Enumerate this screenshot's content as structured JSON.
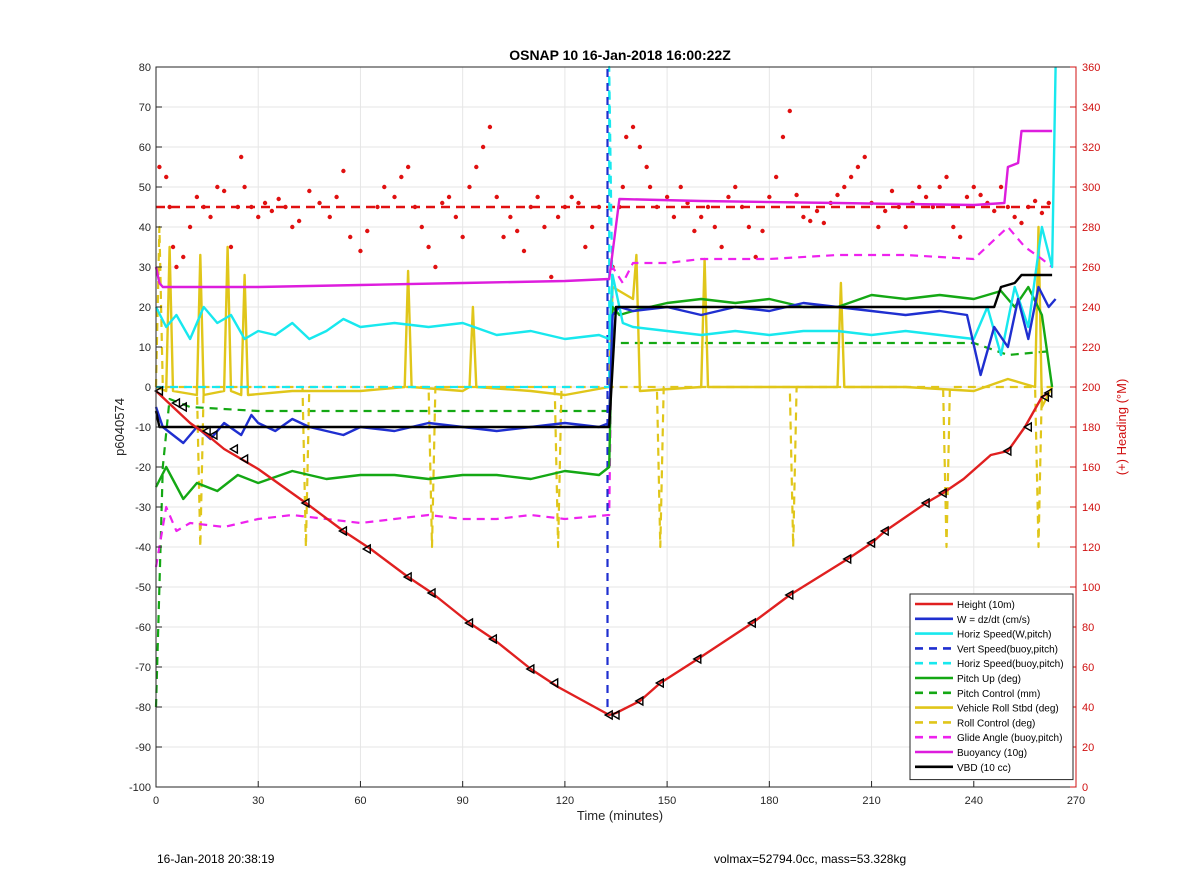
{
  "chart_data": {
    "type": "line",
    "title": "OSNAP 10 16-Jan-2018 16:00:22Z",
    "xlabel": "Time (minutes)",
    "ylabel_left": "p6040574",
    "ylabel_right": "(+) Heading (°M)",
    "xlim": [
      0,
      270
    ],
    "ylim_left": [
      -100,
      80
    ],
    "ylim_right": [
      0,
      360
    ],
    "xticks": [
      0,
      30,
      60,
      90,
      120,
      150,
      180,
      210,
      240,
      270
    ],
    "yticks_left": [
      -100,
      -90,
      -80,
      -70,
      -60,
      -50,
      -40,
      -30,
      -20,
      -10,
      0,
      10,
      20,
      30,
      40,
      50,
      60,
      70,
      80
    ],
    "yticks_right": [
      0,
      20,
      40,
      60,
      80,
      100,
      120,
      140,
      160,
      180,
      200,
      220,
      240,
      260,
      280,
      300,
      320,
      340,
      360
    ],
    "grid": true,
    "legend_position": "bottom-right",
    "colors": {
      "height": "#e02020",
      "w": "#1f2fd0",
      "horiz_speed": "#18e8ee",
      "pitch": "#14a814",
      "roll": "#e0c61a",
      "glide": "#ee22ee",
      "buoyancy": "#dd1ddd",
      "vbd": "#000000",
      "heading": "#e01010",
      "right_axis": "#d01010"
    },
    "series": [
      {
        "name": "Height (10m)",
        "key": "height",
        "style": "solid",
        "x": [
          0,
          5,
          10,
          15,
          20,
          25,
          30,
          44,
          55,
          63,
          74,
          81,
          92,
          99,
          110,
          118,
          133,
          135,
          142,
          148,
          159,
          175,
          186,
          203,
          210,
          214,
          226,
          231,
          237,
          245,
          250,
          255,
          260,
          262
        ],
        "y": [
          -1,
          -5,
          -9,
          -12,
          -15.5,
          -18,
          -20.5,
          -29,
          -36,
          -40.5,
          -47.5,
          -51.5,
          -59,
          -63,
          -70.5,
          -75,
          -82,
          -81.5,
          -78.5,
          -74,
          -68,
          -59,
          -52,
          -43,
          -39,
          -36,
          -29,
          -26.5,
          -23,
          -17,
          -16,
          -10,
          -2.5,
          -1.5
        ]
      },
      {
        "name": "W = dz/dt (cm/s)",
        "key": "w",
        "style": "solid",
        "x": [
          0,
          2,
          5,
          8,
          12,
          16,
          20,
          25,
          28,
          30,
          35,
          40,
          45,
          50,
          55,
          60,
          70,
          80,
          90,
          100,
          110,
          120,
          130,
          133,
          134,
          136,
          140,
          150,
          160,
          170,
          180,
          190,
          200,
          210,
          220,
          230,
          238,
          242,
          246,
          250,
          253,
          256,
          259,
          262,
          264
        ],
        "y": [
          -5,
          -10,
          -12,
          -14,
          -10,
          -13,
          -9,
          -12,
          -7,
          -9,
          -11,
          -8,
          -10,
          -11,
          -12,
          -10,
          -11,
          -9,
          -10,
          -11,
          -10,
          -9,
          -10,
          -9,
          18,
          20,
          19,
          20,
          18,
          20,
          19,
          21,
          20,
          19,
          18,
          19,
          18,
          3,
          15,
          10,
          22,
          12,
          25,
          20,
          22
        ]
      },
      {
        "name": "Horiz Speed(W,pitch)",
        "key": "horiz_speed",
        "style": "solid",
        "x": [
          0,
          3,
          6,
          10,
          14,
          18,
          22,
          26,
          30,
          35,
          40,
          45,
          50,
          55,
          60,
          70,
          80,
          90,
          100,
          110,
          120,
          130,
          133,
          134,
          137,
          140,
          150,
          160,
          170,
          180,
          190,
          200,
          210,
          220,
          230,
          240,
          244,
          248,
          252,
          256,
          260,
          263,
          264
        ],
        "y": [
          20,
          15,
          18,
          12,
          20,
          16,
          18,
          12,
          14,
          13,
          16,
          12,
          14,
          17,
          15,
          16,
          15,
          16,
          13,
          14,
          12,
          13,
          12,
          28,
          16,
          15,
          14,
          13,
          14,
          13,
          14,
          14,
          13,
          14,
          13,
          12,
          20,
          8,
          25,
          15,
          40,
          30,
          80
        ]
      },
      {
        "name": "Vert Speed(buoy,pitch)",
        "key": "w",
        "style": "dashed",
        "x": [
          132.5,
          132.5
        ],
        "y": [
          -80,
          80
        ]
      },
      {
        "name": "Horiz Speed(buoy,pitch)",
        "key": "horiz_speed",
        "style": "dashed",
        "x": [
          0,
          133,
          133,
          134
        ],
        "y": [
          0,
          0,
          80,
          20
        ]
      },
      {
        "name": "Pitch Up (deg)",
        "key": "pitch",
        "style": "solid",
        "x": [
          0,
          3,
          8,
          12,
          18,
          24,
          30,
          40,
          50,
          60,
          70,
          80,
          90,
          100,
          110,
          120,
          130,
          133,
          134,
          136,
          140,
          150,
          160,
          170,
          180,
          190,
          200,
          210,
          220,
          230,
          240,
          248,
          252,
          256,
          260,
          263
        ],
        "y": [
          -25,
          -20,
          -28,
          -24,
          -26,
          -22,
          -24,
          -21,
          -23,
          -22,
          -22,
          -23,
          -22,
          -22,
          -23,
          -21,
          -22,
          -20,
          20,
          18,
          19,
          21,
          22,
          21,
          22,
          20,
          20,
          23,
          22,
          23,
          22,
          24,
          20,
          25,
          18,
          0
        ]
      },
      {
        "name": "Pitch Control (mm)",
        "key": "pitch",
        "style": "dashed",
        "x": [
          0,
          2,
          4,
          10,
          30,
          60,
          90,
          120,
          133,
          134,
          150,
          180,
          210,
          240,
          250,
          263
        ],
        "y": [
          -80,
          -20,
          -3,
          -5,
          -6,
          -6,
          -6,
          -6,
          -6,
          11,
          11,
          11,
          11,
          11,
          8,
          9
        ]
      },
      {
        "name": "Vehicle Roll Stbd (deg)",
        "key": "roll",
        "style": "solid",
        "x": [
          0,
          3,
          4,
          5,
          12,
          13,
          14,
          20,
          21,
          22,
          25,
          26,
          27,
          40,
          60,
          73,
          74,
          75,
          90,
          92,
          93,
          94,
          110,
          120,
          133,
          134,
          140,
          141,
          142,
          160,
          161,
          162,
          185,
          200,
          201,
          202,
          220,
          240,
          250,
          258,
          259,
          260,
          263
        ],
        "y": [
          0,
          -1,
          35,
          -1,
          -2,
          33,
          -2,
          -1,
          35,
          -1,
          -2,
          28,
          -2,
          -1,
          -1,
          0,
          29,
          0,
          -1,
          0,
          20,
          0,
          -1,
          -2,
          0,
          25,
          22,
          33,
          -1,
          0,
          32,
          0,
          0,
          0,
          26,
          0,
          0,
          -1,
          2,
          0,
          40,
          -5,
          0
        ]
      },
      {
        "name": "Roll Control (deg)",
        "key": "roll",
        "style": "dashed",
        "x": [
          0,
          1,
          2,
          3,
          12,
          13,
          14,
          30,
          43,
          44,
          45,
          80,
          81,
          82,
          117,
          118,
          119,
          133,
          147,
          148,
          149,
          186,
          187,
          188,
          231,
          232,
          233,
          258,
          259,
          260,
          263
        ],
        "y": [
          0,
          40,
          0,
          0,
          0,
          -40,
          0,
          0,
          0,
          -40,
          0,
          0,
          -40,
          0,
          0,
          -40,
          0,
          0,
          0,
          -40,
          0,
          0,
          -40,
          0,
          0,
          -40,
          0,
          0,
          -40,
          0,
          0
        ]
      },
      {
        "name": "Glide Angle (buoy,pitch)",
        "key": "glide",
        "style": "dashed",
        "x": [
          0,
          3,
          6,
          10,
          20,
          30,
          40,
          50,
          60,
          70,
          80,
          90,
          100,
          110,
          120,
          133,
          134,
          137,
          140,
          150,
          160,
          180,
          200,
          220,
          240,
          250,
          255,
          260,
          263
        ],
        "y": [
          -45,
          -30,
          -36,
          -34,
          -35,
          -33,
          -32,
          -33,
          -34,
          -33,
          -32,
          -33,
          -33,
          -32,
          -33,
          -32,
          30,
          26,
          31,
          31,
          32,
          32,
          33,
          33,
          32,
          40,
          35,
          32,
          30
        ]
      },
      {
        "name": "Buoyancy (10g)",
        "key": "buoyancy",
        "style": "solid",
        "x": [
          0,
          1,
          2,
          30,
          60,
          90,
          120,
          133,
          136,
          160,
          200,
          240,
          249,
          250,
          253,
          254,
          263
        ],
        "y": [
          30,
          26,
          25,
          25,
          25.5,
          26,
          26.5,
          27,
          47,
          46.5,
          46,
          45.5,
          46,
          55,
          56,
          64,
          64
        ]
      },
      {
        "name": "VBD (10 cc)",
        "key": "vbd",
        "style": "solid",
        "x": [
          0,
          1,
          2,
          132,
          133,
          135,
          180,
          200,
          240,
          246,
          248,
          252,
          254,
          263
        ],
        "y": [
          -6,
          -10,
          -10,
          -10,
          -10,
          20,
          20,
          20,
          20,
          20,
          25,
          26,
          28,
          28
        ]
      }
    ],
    "heading_setpoint_right": 290,
    "heading_points_right": [
      [
        1,
        310
      ],
      [
        3,
        305
      ],
      [
        4,
        290
      ],
      [
        5,
        270
      ],
      [
        6,
        260
      ],
      [
        8,
        265
      ],
      [
        10,
        280
      ],
      [
        12,
        295
      ],
      [
        14,
        290
      ],
      [
        16,
        285
      ],
      [
        18,
        300
      ],
      [
        20,
        298
      ],
      [
        22,
        270
      ],
      [
        24,
        290
      ],
      [
        25,
        315
      ],
      [
        26,
        300
      ],
      [
        28,
        290
      ],
      [
        30,
        285
      ],
      [
        32,
        292
      ],
      [
        34,
        288
      ],
      [
        36,
        294
      ],
      [
        38,
        290
      ],
      [
        40,
        280
      ],
      [
        42,
        283
      ],
      [
        45,
        298
      ],
      [
        48,
        292
      ],
      [
        51,
        285
      ],
      [
        53,
        295
      ],
      [
        55,
        308
      ],
      [
        57,
        275
      ],
      [
        60,
        268
      ],
      [
        62,
        278
      ],
      [
        65,
        290
      ],
      [
        67,
        300
      ],
      [
        70,
        295
      ],
      [
        72,
        305
      ],
      [
        74,
        310
      ],
      [
        76,
        290
      ],
      [
        78,
        280
      ],
      [
        80,
        270
      ],
      [
        82,
        260
      ],
      [
        84,
        292
      ],
      [
        86,
        295
      ],
      [
        88,
        285
      ],
      [
        90,
        275
      ],
      [
        92,
        300
      ],
      [
        94,
        310
      ],
      [
        96,
        320
      ],
      [
        98,
        330
      ],
      [
        100,
        295
      ],
      [
        102,
        275
      ],
      [
        104,
        285
      ],
      [
        106,
        278
      ],
      [
        108,
        268
      ],
      [
        110,
        290
      ],
      [
        112,
        295
      ],
      [
        114,
        280
      ],
      [
        116,
        255
      ],
      [
        118,
        285
      ],
      [
        120,
        290
      ],
      [
        122,
        295
      ],
      [
        124,
        292
      ],
      [
        126,
        270
      ],
      [
        128,
        280
      ],
      [
        130,
        290
      ],
      [
        134,
        260
      ],
      [
        136,
        290
      ],
      [
        137,
        300
      ],
      [
        138,
        325
      ],
      [
        140,
        330
      ],
      [
        142,
        320
      ],
      [
        144,
        310
      ],
      [
        145,
        300
      ],
      [
        147,
        290
      ],
      [
        150,
        295
      ],
      [
        152,
        285
      ],
      [
        154,
        300
      ],
      [
        156,
        292
      ],
      [
        158,
        278
      ],
      [
        160,
        285
      ],
      [
        162,
        290
      ],
      [
        164,
        280
      ],
      [
        166,
        270
      ],
      [
        168,
        295
      ],
      [
        170,
        300
      ],
      [
        172,
        290
      ],
      [
        174,
        280
      ],
      [
        176,
        265
      ],
      [
        178,
        278
      ],
      [
        180,
        295
      ],
      [
        182,
        305
      ],
      [
        184,
        325
      ],
      [
        186,
        338
      ],
      [
        188,
        296
      ],
      [
        190,
        285
      ],
      [
        192,
        283
      ],
      [
        194,
        288
      ],
      [
        196,
        282
      ],
      [
        198,
        292
      ],
      [
        200,
        296
      ],
      [
        202,
        300
      ],
      [
        204,
        305
      ],
      [
        206,
        310
      ],
      [
        208,
        315
      ],
      [
        210,
        292
      ],
      [
        212,
        280
      ],
      [
        214,
        288
      ],
      [
        216,
        298
      ],
      [
        218,
        290
      ],
      [
        220,
        280
      ],
      [
        222,
        292
      ],
      [
        224,
        300
      ],
      [
        226,
        295
      ],
      [
        228,
        290
      ],
      [
        230,
        300
      ],
      [
        232,
        305
      ],
      [
        234,
        280
      ],
      [
        236,
        275
      ],
      [
        238,
        295
      ],
      [
        240,
        300
      ],
      [
        242,
        296
      ],
      [
        244,
        292
      ],
      [
        246,
        288
      ],
      [
        248,
        300
      ],
      [
        250,
        290
      ],
      [
        252,
        285
      ],
      [
        254,
        282
      ],
      [
        256,
        290
      ],
      [
        258,
        293
      ],
      [
        260,
        287
      ],
      [
        262,
        292
      ]
    ],
    "markers": {
      "x": [
        1,
        6,
        8,
        15,
        17,
        23,
        26,
        44,
        55,
        62,
        74,
        81,
        92,
        99,
        110,
        117,
        133,
        135,
        142,
        148,
        159,
        175,
        186,
        203,
        210,
        214,
        226,
        231,
        250,
        256,
        261,
        262
      ],
      "y": [
        -1,
        -4,
        -5,
        -11,
        -12,
        -15.5,
        -18,
        -29,
        -36,
        -40.5,
        -47.5,
        -51.5,
        -59,
        -63,
        -70.5,
        -74,
        -82,
        -82,
        -78.5,
        -74,
        -68,
        -59,
        -52,
        -43,
        -39,
        -36,
        -29,
        -26.5,
        -16,
        -10,
        -2.5,
        -1.5
      ]
    }
  },
  "footer": {
    "timestamp": "16-Jan-2018 20:38:19",
    "summary": "volmax=52794.0cc, mass=53.328kg"
  }
}
